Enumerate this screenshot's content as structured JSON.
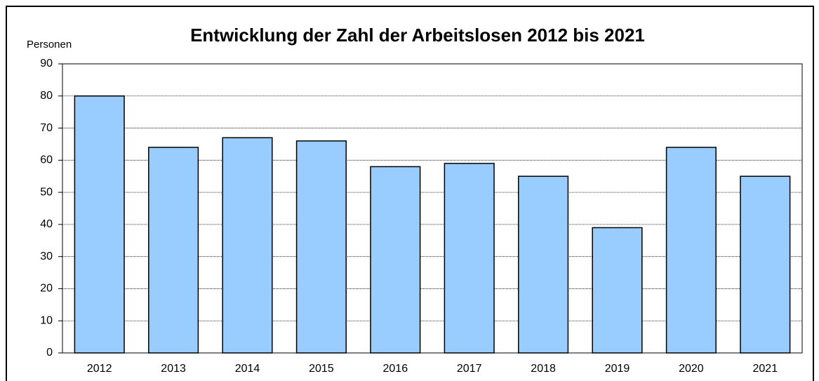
{
  "chart_data": {
    "type": "bar",
    "title": "Entwicklung der Zahl der Arbeitslosen 2012 bis 2021",
    "y_label": "Personen",
    "categories": [
      "2012",
      "2013",
      "2014",
      "2015",
      "2016",
      "2017",
      "2018",
      "2019",
      "2020",
      "2021"
    ],
    "values": [
      80,
      64,
      67,
      66,
      58,
      59,
      55,
      39,
      64,
      55
    ],
    "color": "#99ccff",
    "ylim": [
      0,
      90
    ],
    "yticks": [
      0,
      10,
      20,
      30,
      40,
      50,
      60,
      70,
      80,
      90
    ],
    "grid": true
  }
}
